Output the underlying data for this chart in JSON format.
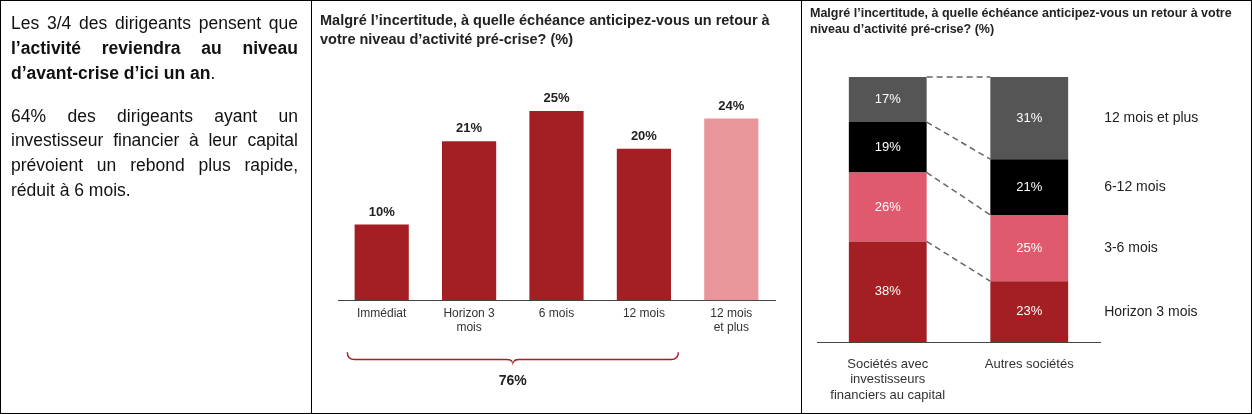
{
  "chart_data": [
    {
      "type": "other",
      "annotations": [
        "Les 3/4 des dirigeants pensent que",
        "l’activité reviendra au niveau d’avant-crise d’ici un an",
        ".",
        "64% des dirigeants ayant un investisseur financier à leur capital prévoient un rebond plus rapide, réduit à 6 mois."
      ]
    },
    {
      "type": "bar",
      "title": "Malgré l’incertitude, à quelle échéance anticipez-vous un retour à votre niveau d’activité pré-crise? (%)",
      "categories": [
        "Immédiat",
        "Horizon 3 mois",
        "6 mois",
        "12 mois",
        "12 mois et plus"
      ],
      "values": [
        10,
        21,
        25,
        20,
        24
      ],
      "colors": [
        "#a31f24",
        "#a31f24",
        "#a31f24",
        "#a31f24",
        "#e8969a"
      ],
      "value_labels": [
        "10%",
        "21%",
        "25%",
        "20%",
        "24%"
      ],
      "annotations": [
        "76%"
      ],
      "grid": false,
      "legend": false
    },
    {
      "type": "bar",
      "stacked": true,
      "title": "Malgré l’incertitude, à quelle échéance anticipez-vous un retour à votre niveau d’activité pré-crise? (%)",
      "categories": [
        "Sociétés avec investisseurs financiers au capital",
        "Autres sociétés"
      ],
      "legend": "right",
      "grid": false,
      "series": [
        {
          "name": "Horizon 3 mois",
          "color": "#a31f24",
          "values": [
            38,
            23
          ],
          "value_labels": [
            "38%",
            "23%"
          ]
        },
        {
          "name": "3-6 mois",
          "color": "#e05a6e",
          "values": [
            26,
            25
          ],
          "value_labels": [
            "26%",
            "25%"
          ]
        },
        {
          "name": "6-12 mois",
          "color": "#000000",
          "values": [
            19,
            21
          ],
          "value_labels": [
            "19%",
            "21%"
          ]
        },
        {
          "name": "12 mois et plus",
          "color": "#555555",
          "values": [
            17,
            31
          ],
          "value_labels": [
            "17%",
            "31%"
          ]
        }
      ]
    }
  ]
}
